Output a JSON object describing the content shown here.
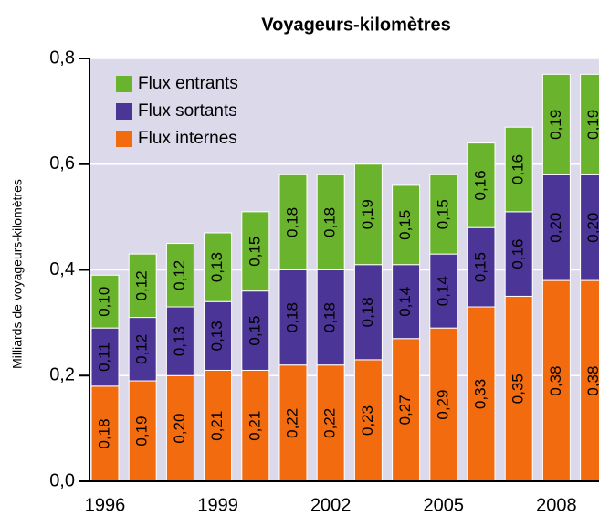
{
  "chart_data": {
    "type": "stacked-bar",
    "title": "Voyageurs-kilomètres",
    "y_label": "Milliards de voyageurs-kilomètres",
    "categories": [
      "1996",
      null,
      null,
      "1999",
      null,
      null,
      "2002",
      null,
      null,
      "2005",
      null,
      null,
      "2008",
      null
    ],
    "series": [
      {
        "name": "Flux internes",
        "color": "#f26b0f",
        "values": [
          0.18,
          0.19,
          0.2,
          0.21,
          0.21,
          0.22,
          0.22,
          0.23,
          0.27,
          0.29,
          0.33,
          0.35,
          0.38,
          0.38
        ],
        "value_labels": [
          "0,18",
          "0,19",
          "0,20",
          "0,21",
          "0,21",
          "0,22",
          "0,22",
          "0,23",
          "0,27",
          "0,29",
          "0,33",
          "0,35",
          "0,38",
          "0,38"
        ]
      },
      {
        "name": "Flux sortants",
        "color": "#4b3596",
        "values": [
          0.11,
          0.12,
          0.13,
          0.13,
          0.15,
          0.18,
          0.18,
          0.18,
          0.14,
          0.14,
          0.15,
          0.16,
          0.2,
          0.2
        ],
        "value_labels": [
          "0,11",
          "0,12",
          "0,13",
          "0,13",
          "0,15",
          "0,18",
          "0,18",
          "0,18",
          "0,14",
          "0,14",
          "0,15",
          "0,16",
          "0,20",
          "0,20"
        ]
      },
      {
        "name": "Flux entrants",
        "color": "#6ab42d",
        "values": [
          0.1,
          0.12,
          0.12,
          0.13,
          0.15,
          0.18,
          0.18,
          0.19,
          0.15,
          0.15,
          0.16,
          0.16,
          0.19,
          0.19
        ],
        "value_labels": [
          "0,10",
          "0,12",
          "0,12",
          "0,13",
          "0,15",
          "0,18",
          "0,18",
          "0,19",
          "0,15",
          "0,15",
          "0,16",
          "0,16",
          "0,19",
          "0,19"
        ]
      }
    ],
    "ylim": [
      0,
      0.8
    ],
    "yticks": [
      {
        "value": 0,
        "label": "0,0"
      },
      {
        "value": 0.2,
        "label": "0,2"
      },
      {
        "value": 0.4,
        "label": "0,4"
      },
      {
        "value": 0.6,
        "label": "0,6"
      },
      {
        "value": 0.8,
        "label": "0,8"
      }
    ],
    "grid": true,
    "legend": "upper left"
  }
}
